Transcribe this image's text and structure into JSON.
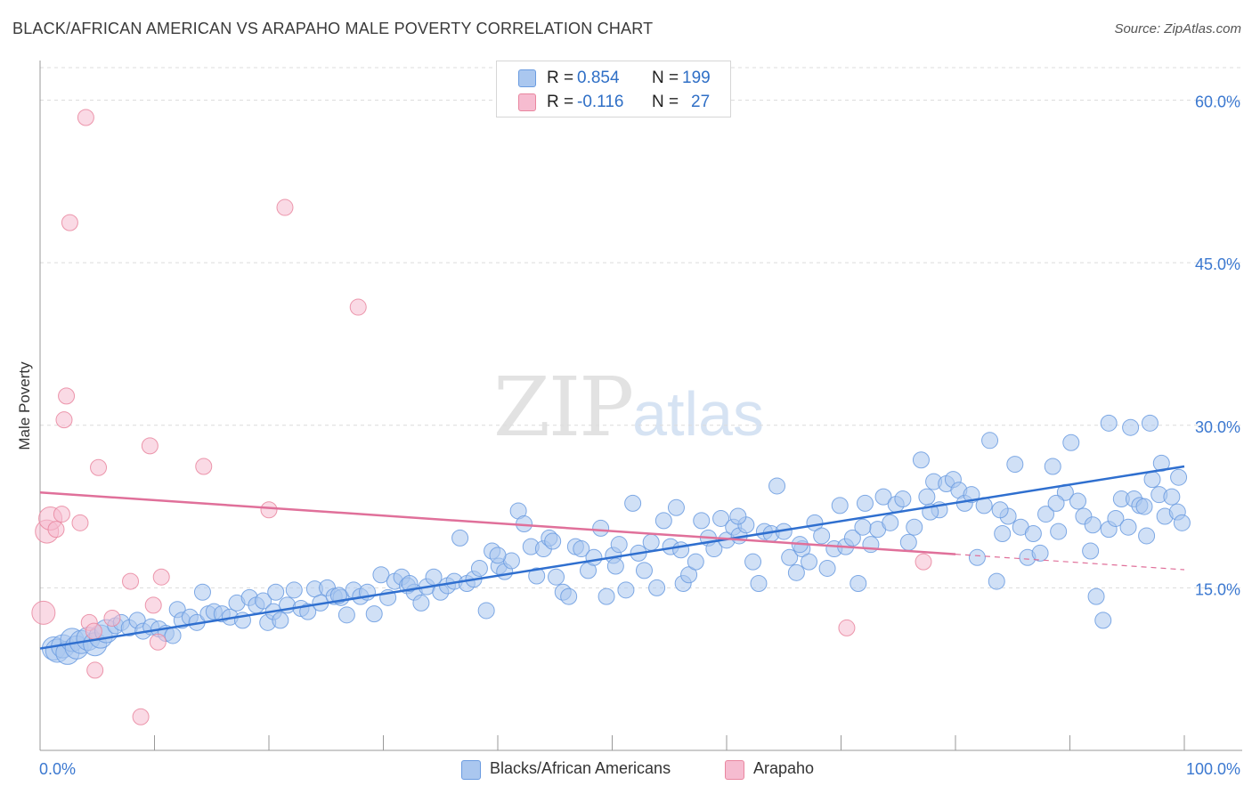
{
  "title": "BLACK/AFRICAN AMERICAN VS ARAPAHO MALE POVERTY CORRELATION CHART",
  "source": "Source: ZipAtlas.com",
  "watermark": {
    "zip": "ZIP",
    "atlas": "atlas"
  },
  "legend_top": [
    {
      "r_label": "R = ",
      "r_value": "0.854",
      "n_label": "N = ",
      "n_value": "199",
      "color": "#aac7ef"
    },
    {
      "r_label": "R = ",
      "r_value": "-0.116",
      "n_label": "N = ",
      "n_value": "27",
      "color": "#f6bcd0"
    }
  ],
  "legend_bottom": [
    {
      "label": "Blacks/African Americans",
      "color": "#aac7ef"
    },
    {
      "label": "Arapaho",
      "color": "#f6bcd0"
    }
  ],
  "chart_data": {
    "type": "scatter",
    "title": "BLACK/AFRICAN AMERICAN VS ARAPAHO MALE POVERTY CORRELATION CHART",
    "xlabel": "",
    "ylabel": "Male Poverty",
    "xlim": [
      0,
      100
    ],
    "ylim": [
      0,
      60
    ],
    "x_tick_labels": [
      "0.0%",
      "100.0%"
    ],
    "y_ticks": [
      15,
      30,
      45,
      60
    ],
    "y_tick_labels": [
      "15.0%",
      "30.0%",
      "45.0%",
      "60.0%"
    ],
    "grid": true,
    "series": [
      {
        "name": "Blacks/African Americans",
        "color": "#6a9be0",
        "fill": "#aac7ef",
        "trend": {
          "x": [
            0,
            100
          ],
          "y": [
            9.4,
            26.2
          ]
        },
        "points": [
          [
            1.2,
            9.4
          ],
          [
            1.5,
            9.2
          ],
          [
            2.0,
            9.6
          ],
          [
            2.4,
            9.0
          ],
          [
            2.8,
            10.2
          ],
          [
            3.2,
            9.5
          ],
          [
            3.6,
            10.0
          ],
          [
            4.2,
            10.3
          ],
          [
            4.8,
            9.8
          ],
          [
            5.3,
            10.5
          ],
          [
            5.8,
            11.0
          ],
          [
            6.6,
            11.5
          ],
          [
            7.1,
            11.8
          ],
          [
            7.8,
            11.3
          ],
          [
            8.5,
            12.0
          ],
          [
            9.0,
            11.0
          ],
          [
            9.7,
            11.4
          ],
          [
            10.4,
            11.2
          ],
          [
            11.0,
            10.8
          ],
          [
            11.6,
            10.6
          ],
          [
            12.0,
            13.0
          ],
          [
            12.4,
            12.0
          ],
          [
            13.1,
            12.3
          ],
          [
            13.7,
            11.8
          ],
          [
            14.2,
            14.6
          ],
          [
            14.7,
            12.6
          ],
          [
            15.2,
            12.8
          ],
          [
            15.9,
            12.6
          ],
          [
            16.6,
            12.3
          ],
          [
            17.2,
            13.6
          ],
          [
            17.7,
            12.0
          ],
          [
            18.3,
            14.1
          ],
          [
            18.9,
            13.4
          ],
          [
            19.5,
            13.8
          ],
          [
            19.9,
            11.8
          ],
          [
            20.4,
            12.8
          ],
          [
            21.0,
            12.0
          ],
          [
            21.6,
            13.4
          ],
          [
            22.2,
            14.8
          ],
          [
            22.8,
            13.1
          ],
          [
            23.4,
            12.8
          ],
          [
            24.0,
            14.9
          ],
          [
            24.5,
            13.6
          ],
          [
            25.1,
            15.0
          ],
          [
            25.7,
            14.2
          ],
          [
            26.3,
            14.1
          ],
          [
            26.8,
            12.5
          ],
          [
            27.4,
            14.8
          ],
          [
            28.0,
            14.2
          ],
          [
            28.6,
            14.6
          ],
          [
            29.2,
            12.6
          ],
          [
            29.8,
            16.2
          ],
          [
            30.4,
            14.1
          ],
          [
            31.0,
            15.6
          ],
          [
            31.6,
            16.0
          ],
          [
            32.1,
            15.2
          ],
          [
            32.7,
            14.6
          ],
          [
            33.3,
            13.6
          ],
          [
            33.8,
            15.1
          ],
          [
            34.4,
            16.0
          ],
          [
            35.0,
            14.6
          ],
          [
            35.6,
            15.2
          ],
          [
            36.2,
            15.6
          ],
          [
            36.7,
            19.6
          ],
          [
            37.3,
            15.4
          ],
          [
            37.9,
            15.8
          ],
          [
            38.4,
            16.8
          ],
          [
            39.0,
            12.9
          ],
          [
            39.5,
            18.4
          ],
          [
            40.1,
            17.0
          ],
          [
            40.6,
            16.5
          ],
          [
            41.2,
            17.5
          ],
          [
            41.8,
            22.1
          ],
          [
            42.3,
            20.9
          ],
          [
            42.9,
            18.8
          ],
          [
            43.4,
            16.1
          ],
          [
            44.0,
            18.6
          ],
          [
            44.5,
            19.6
          ],
          [
            45.1,
            16.0
          ],
          [
            45.7,
            14.6
          ],
          [
            46.2,
            14.2
          ],
          [
            46.8,
            18.8
          ],
          [
            47.3,
            18.6
          ],
          [
            47.9,
            16.6
          ],
          [
            48.4,
            17.8
          ],
          [
            49.0,
            20.5
          ],
          [
            49.5,
            14.2
          ],
          [
            50.1,
            18.0
          ],
          [
            50.6,
            19.0
          ],
          [
            51.2,
            14.8
          ],
          [
            51.8,
            22.8
          ],
          [
            52.3,
            18.2
          ],
          [
            52.8,
            16.6
          ],
          [
            53.4,
            19.2
          ],
          [
            53.9,
            15.0
          ],
          [
            54.5,
            21.2
          ],
          [
            55.1,
            18.8
          ],
          [
            55.6,
            22.4
          ],
          [
            56.2,
            15.4
          ],
          [
            56.7,
            16.2
          ],
          [
            57.3,
            17.4
          ],
          [
            57.8,
            21.2
          ],
          [
            58.4,
            19.6
          ],
          [
            58.9,
            18.6
          ],
          [
            59.5,
            21.4
          ],
          [
            60.0,
            19.4
          ],
          [
            60.6,
            20.6
          ],
          [
            61.1,
            19.8
          ],
          [
            61.7,
            20.8
          ],
          [
            62.3,
            17.4
          ],
          [
            62.8,
            15.4
          ],
          [
            63.3,
            20.2
          ],
          [
            63.9,
            20.0
          ],
          [
            64.4,
            24.4
          ],
          [
            65.0,
            20.2
          ],
          [
            65.5,
            17.8
          ],
          [
            66.1,
            16.4
          ],
          [
            66.6,
            18.6
          ],
          [
            67.2,
            17.4
          ],
          [
            67.7,
            21.0
          ],
          [
            68.3,
            19.8
          ],
          [
            68.8,
            16.8
          ],
          [
            69.4,
            18.6
          ],
          [
            69.9,
            22.6
          ],
          [
            70.4,
            18.8
          ],
          [
            71.0,
            19.6
          ],
          [
            71.5,
            15.4
          ],
          [
            72.1,
            22.8
          ],
          [
            72.6,
            19.0
          ],
          [
            73.2,
            20.4
          ],
          [
            73.7,
            23.4
          ],
          [
            74.3,
            21.0
          ],
          [
            74.8,
            22.7
          ],
          [
            75.4,
            23.2
          ],
          [
            75.9,
            19.2
          ],
          [
            76.4,
            20.6
          ],
          [
            77.0,
            26.8
          ],
          [
            77.5,
            23.4
          ],
          [
            78.1,
            24.8
          ],
          [
            78.6,
            22.2
          ],
          [
            79.2,
            24.6
          ],
          [
            79.8,
            25.0
          ],
          [
            80.3,
            24.0
          ],
          [
            80.8,
            22.8
          ],
          [
            81.4,
            23.6
          ],
          [
            81.9,
            17.8
          ],
          [
            82.5,
            22.6
          ],
          [
            83.0,
            28.6
          ],
          [
            83.6,
            15.6
          ],
          [
            84.1,
            20.0
          ],
          [
            84.6,
            21.6
          ],
          [
            85.2,
            26.4
          ],
          [
            85.7,
            20.6
          ],
          [
            86.3,
            17.8
          ],
          [
            86.8,
            20.0
          ],
          [
            87.4,
            18.2
          ],
          [
            87.9,
            21.8
          ],
          [
            88.5,
            26.2
          ],
          [
            89.0,
            20.2
          ],
          [
            89.6,
            23.8
          ],
          [
            90.1,
            28.4
          ],
          [
            90.7,
            23.0
          ],
          [
            91.2,
            21.6
          ],
          [
            91.8,
            18.4
          ],
          [
            92.3,
            14.2
          ],
          [
            92.9,
            12.0
          ],
          [
            93.4,
            20.4
          ],
          [
            94.0,
            21.4
          ],
          [
            94.5,
            23.2
          ],
          [
            95.1,
            20.6
          ],
          [
            95.6,
            23.2
          ],
          [
            96.1,
            22.6
          ],
          [
            96.7,
            19.8
          ],
          [
            97.2,
            25.0
          ],
          [
            97.8,
            23.6
          ],
          [
            98.3,
            21.6
          ],
          [
            98.9,
            23.4
          ],
          [
            99.4,
            22.0
          ],
          [
            99.8,
            21.0
          ],
          [
            20.6,
            14.6
          ],
          [
            26.1,
            14.3
          ],
          [
            32.3,
            15.4
          ],
          [
            40.0,
            18.0
          ],
          [
            44.8,
            19.3
          ],
          [
            50.3,
            17.0
          ],
          [
            56.0,
            18.5
          ],
          [
            61.0,
            21.6
          ],
          [
            66.4,
            19.0
          ],
          [
            71.9,
            20.6
          ],
          [
            77.8,
            22.0
          ],
          [
            83.9,
            22.2
          ],
          [
            88.8,
            22.8
          ],
          [
            92.0,
            20.8
          ],
          [
            96.5,
            22.5
          ],
          [
            98.0,
            26.5
          ],
          [
            99.5,
            25.2
          ],
          [
            97.0,
            30.2
          ],
          [
            95.3,
            29.8
          ],
          [
            93.4,
            30.2
          ]
        ]
      },
      {
        "name": "Arapaho",
        "color": "#e9869f",
        "fill": "#f6bcd0",
        "trend": {
          "x": [
            0,
            80
          ],
          "y": [
            23.8,
            18.1
          ]
        },
        "points": [
          [
            0.3,
            12.7
          ],
          [
            0.6,
            20.2
          ],
          [
            0.9,
            21.4
          ],
          [
            1.4,
            20.4
          ],
          [
            1.9,
            21.8
          ],
          [
            2.1,
            30.5
          ],
          [
            2.3,
            32.7
          ],
          [
            2.6,
            48.7
          ],
          [
            3.5,
            21.0
          ],
          [
            4.0,
            58.4
          ],
          [
            4.3,
            11.8
          ],
          [
            4.7,
            11.0
          ],
          [
            4.8,
            7.4
          ],
          [
            5.1,
            26.1
          ],
          [
            6.3,
            12.2
          ],
          [
            7.9,
            15.6
          ],
          [
            8.8,
            3.1
          ],
          [
            9.6,
            28.1
          ],
          [
            9.9,
            13.4
          ],
          [
            10.3,
            10.0
          ],
          [
            10.6,
            16.0
          ],
          [
            14.3,
            26.2
          ],
          [
            20.0,
            22.2
          ],
          [
            21.4,
            50.1
          ],
          [
            27.8,
            40.9
          ],
          [
            70.5,
            11.3
          ],
          [
            77.2,
            17.4
          ]
        ]
      }
    ]
  }
}
